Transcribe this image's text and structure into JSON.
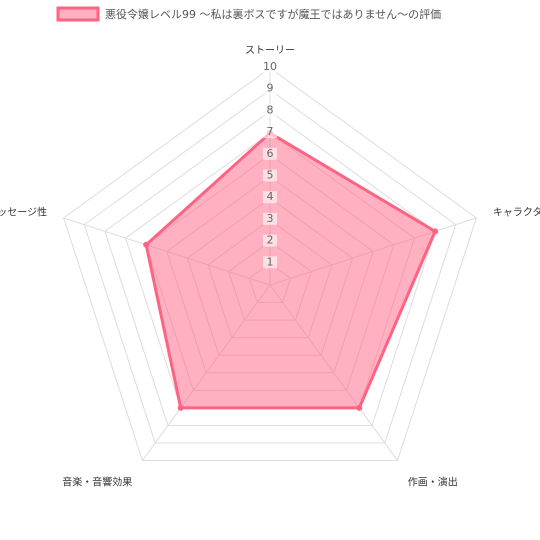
{
  "chart_data": {
    "type": "radar",
    "categories": [
      "ストーリー",
      "キャラクター",
      "作画・演出",
      "音楽・音響効果",
      "メッセージ性"
    ],
    "series": [
      {
        "name": "悪役令嬢レベル99 〜私は裏ボスですが魔王ではありません〜の評価",
        "color": "#ff6384",
        "values": [
          7,
          8,
          7,
          7,
          6
        ]
      }
    ],
    "rlim": [
      0,
      10
    ],
    "rticks": [
      1,
      2,
      3,
      4,
      5,
      6,
      7,
      8,
      9,
      10
    ],
    "grid": true
  }
}
